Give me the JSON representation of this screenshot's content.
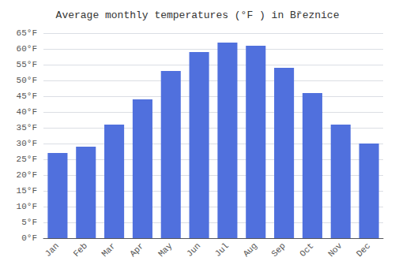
{
  "chart_data": {
    "type": "bar",
    "title": "Average monthly temperatures (°F ) in Březnice",
    "categories": [
      "Jan",
      "Feb",
      "Mar",
      "Apr",
      "May",
      "Jun",
      "Jul",
      "Aug",
      "Sep",
      "Oct",
      "Nov",
      "Dec"
    ],
    "values": [
      27,
      29,
      36,
      44,
      53,
      59,
      62,
      61,
      54,
      46,
      36,
      30
    ],
    "ylim": [
      0,
      65
    ],
    "yticks": [
      {
        "value": 0,
        "label": "0°F"
      },
      {
        "value": 5,
        "label": "5°F"
      },
      {
        "value": 10,
        "label": "10°F"
      },
      {
        "value": 15,
        "label": "15°F"
      },
      {
        "value": 20,
        "label": "20°F"
      },
      {
        "value": 25,
        "label": "25°F"
      },
      {
        "value": 30,
        "label": "30°F"
      },
      {
        "value": 35,
        "label": "35°F"
      },
      {
        "value": 40,
        "label": "40°F"
      },
      {
        "value": 45,
        "label": "45°F"
      },
      {
        "value": 50,
        "label": "50°F"
      },
      {
        "value": 55,
        "label": "55°F"
      },
      {
        "value": 60,
        "label": "60°F"
      },
      {
        "value": 65,
        "label": "65°F"
      }
    ],
    "grid": true
  }
}
